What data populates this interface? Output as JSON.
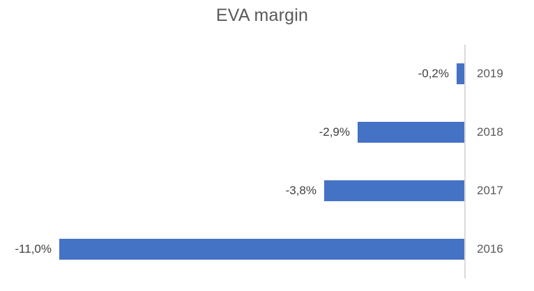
{
  "chart_data": {
    "type": "bar",
    "orientation": "horizontal",
    "title": "EVA margin",
    "categories": [
      "2019",
      "2018",
      "2017",
      "2016"
    ],
    "values": [
      -0.2,
      -2.9,
      -3.8,
      -11.0
    ],
    "labels": [
      "-0,2%",
      "-2,9%",
      "-3,8%",
      "-11,0%"
    ],
    "xlim": [
      -12,
      0
    ],
    "grid": false,
    "legend": "none",
    "category_axis_side": "right",
    "bar_color": "#4472C4",
    "axis_line_color": "#D9D9D9",
    "title_color": "#595959",
    "data_label_color": "#404040",
    "category_label_color": "#595959",
    "background_color": "#FFFFFF"
  }
}
